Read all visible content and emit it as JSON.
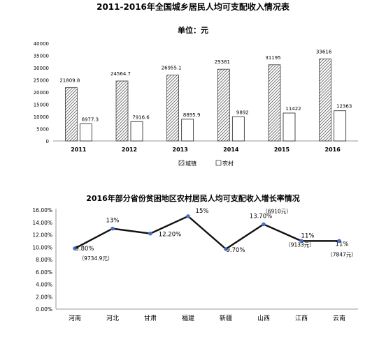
{
  "chart_data": [
    {
      "type": "bar",
      "title": "2011-2016年全国城乡居民人均可支配收入情况表",
      "subtitle": "单位：元",
      "categories": [
        "2011",
        "2012",
        "2013",
        "2014",
        "2015",
        "2016"
      ],
      "series": [
        {
          "name": "城镇",
          "values": [
            21809.8,
            24564.7,
            26955.1,
            29381,
            31195,
            33616
          ],
          "labels": [
            "21809.8",
            "24564.7",
            "26955.1",
            "29381",
            "31195",
            "33616"
          ]
        },
        {
          "name": "农村",
          "values": [
            6977.3,
            7916.6,
            8895.9,
            9892,
            11422,
            12363
          ],
          "labels": [
            "6977.3",
            "7916.6",
            "8895.9",
            "9892",
            "11422",
            "12363"
          ]
        }
      ],
      "ylim": [
        0,
        40000
      ],
      "yticks": [
        "0",
        "5000",
        "10000",
        "15000",
        "20000",
        "25000",
        "30000",
        "35000",
        "40000"
      ],
      "grid": false,
      "legend": "bottom"
    },
    {
      "type": "line",
      "title": "2016年部分省份贫困地区农村居民人均可支配收入增长率情况",
      "categories": [
        "河南",
        "河北",
        "甘肃",
        "福建",
        "新疆",
        "山西",
        "江西",
        "云南"
      ],
      "values": [
        9.8,
        13,
        12.2,
        15,
        9.7,
        13.7,
        11,
        11
      ],
      "labels": [
        "9.80%",
        "13%",
        "12.20%",
        "15%",
        "9.70%",
        "13.70%",
        "11%",
        "11%"
      ],
      "annotations": [
        {
          "category": "河南",
          "text": "（9734.9元）"
        },
        {
          "category": "山西",
          "text": "（6910元）"
        },
        {
          "category": "江西",
          "text": "（9133元）"
        },
        {
          "category": "云南",
          "text": "（7847元）"
        }
      ],
      "ylim": [
        0,
        16
      ],
      "yticks": [
        "0.00%",
        "2.00%",
        "4.00%",
        "6.00%",
        "8.00%",
        "10.00%",
        "12.00%",
        "14.00%",
        "16.00%"
      ],
      "grid": false,
      "legend": "none"
    }
  ],
  "colors": {
    "line": "#111111",
    "marker": "#4472c4",
    "bar_fill": "#ffffff",
    "axis": "#999999"
  }
}
